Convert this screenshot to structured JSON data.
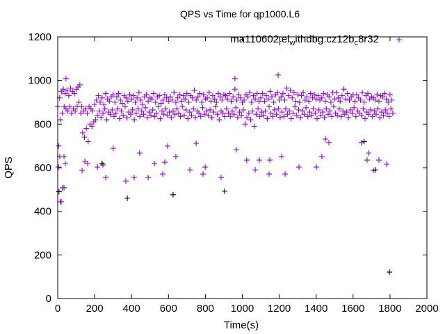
{
  "chart_data": {
    "type": "scatter",
    "title": "QPS vs Time for qp1000.L6",
    "xlabel": "Time(s)",
    "ylabel": "QPS",
    "xlim": [
      0,
      2000
    ],
    "ylim": [
      0,
      1200
    ],
    "xticks": [
      0,
      200,
      400,
      600,
      800,
      1000,
      1200,
      1400,
      1600,
      1800,
      2000
    ],
    "yticks": [
      0,
      200,
      400,
      600,
      800,
      1000,
      1200
    ],
    "grid": false,
    "legend": {
      "placement": "top-right",
      "label_parts": [
        {
          "t": "ma110602",
          "sub": false
        },
        {
          "t": "r",
          "sub": true
        },
        {
          "t": "el",
          "sub": false
        },
        {
          "t": "w",
          "sub": true
        },
        {
          "t": "ithdbg.cz12b",
          "sub": false
        },
        {
          "t": "c",
          "sub": true
        },
        {
          "t": "8r32",
          "sub": false
        }
      ]
    },
    "series": [
      {
        "name": "ma110602_rel_withdbg.cz12b_c8r32",
        "color": "#9400d3",
        "marker": "plus",
        "band": {
          "x_start": 0,
          "x_step": 10,
          "y_upper": [
            880,
            920,
            950,
            960,
            940,
            955,
            930,
            965,
            950,
            940,
            960,
            970,
            980,
            880,
            860,
            870,
            850,
            880,
            870,
            860,
            890,
            910,
            930,
            900,
            920,
            890,
            940,
            915,
            905,
            925,
            935,
            900,
            925,
            940,
            910,
            895,
            930,
            920,
            905,
            935,
            915,
            930,
            900,
            920,
            945,
            910,
            890,
            925,
            935,
            905,
            920,
            915,
            940,
            900,
            925,
            930,
            895,
            910,
            935,
            920,
            905,
            925,
            910,
            945,
            900,
            920,
            935,
            905,
            930,
            915,
            940,
            900,
            930,
            920,
            955,
            910,
            925,
            940,
            900,
            935,
            915,
            920,
            945,
            905,
            930,
            915,
            900,
            940,
            925,
            910,
            935,
            930,
            915,
            940,
            905,
            925,
            960,
            910,
            935,
            920,
            900,
            910,
            935,
            925,
            945,
            900,
            930,
            915,
            940,
            905,
            920,
            940,
            905,
            930,
            915,
            950,
            925,
            900,
            935,
            945,
            910,
            925,
            940,
            910,
            965,
            930,
            955,
            920,
            945,
            905,
            935,
            900,
            930,
            945,
            910,
            925,
            905,
            940,
            920,
            935,
            915,
            930,
            910,
            920,
            940,
            905,
            935,
            925,
            900,
            945,
            915,
            945,
            920,
            905,
            930,
            960,
            915,
            940,
            910,
            925,
            935,
            905,
            935,
            920,
            910,
            945,
            900,
            930,
            940,
            915,
            925,
            920,
            910,
            935,
            905,
            930,
            925,
            940,
            915,
            900,
            935,
            910
          ],
          "y_lower": [
            700,
            820,
            850,
            880,
            870,
            860,
            880,
            850,
            870,
            860,
            880,
            900,
            850,
            760,
            740,
            780,
            720,
            800,
            790,
            810,
            820,
            840,
            860,
            830,
            850,
            870,
            820,
            855,
            845,
            865,
            835,
            850,
            870,
            825,
            860,
            840,
            880,
            830,
            855,
            845,
            865,
            820,
            850,
            870,
            835,
            860,
            845,
            875,
            830,
            855,
            840,
            865,
            835,
            850,
            880,
            825,
            860,
            845,
            870,
            840,
            855,
            830,
            860,
            845,
            870,
            850,
            835,
            880,
            840,
            865,
            825,
            855,
            840,
            870,
            830,
            860,
            850,
            835,
            875,
            845,
            860,
            840,
            865,
            830,
            855,
            880,
            845,
            820,
            860,
            850,
            835,
            870,
            850,
            835,
            860,
            845,
            875,
            830,
            855,
            840,
            865,
            800,
            830,
            850,
            820,
            860,
            790,
            845,
            870,
            835,
            855,
            840,
            860,
            825,
            880,
            850,
            835,
            865,
            845,
            870,
            830,
            855,
            835,
            870,
            845,
            860,
            825,
            850,
            880,
            840,
            865,
            830,
            860,
            845,
            875,
            835,
            855,
            840,
            870,
            850,
            825,
            865,
            840,
            855,
            830,
            870,
            845,
            860,
            835,
            880,
            850,
            840,
            870,
            835,
            860,
            845,
            855,
            830,
            865,
            850,
            875,
            835,
            860,
            850,
            840,
            870,
            825,
            855,
            845,
            865,
            835,
            860,
            845,
            870,
            830,
            855,
            840,
            865,
            850,
            835,
            870,
            850
          ]
        },
        "outliers": [
          [
            15,
            444
          ],
          [
            19,
            444
          ],
          [
            26,
            508
          ],
          [
            34,
            508
          ],
          [
            4,
            603
          ],
          [
            11,
            651
          ],
          [
            34,
            651
          ],
          [
            41,
            619
          ],
          [
            132,
            587
          ],
          [
            147,
            629
          ],
          [
            162,
            619
          ],
          [
            215,
            603
          ],
          [
            245,
            613
          ],
          [
            260,
            555
          ],
          [
            301,
            689
          ],
          [
            369,
            539
          ],
          [
            414,
            555
          ],
          [
            444,
            667
          ],
          [
            490,
            555
          ],
          [
            524,
            619
          ],
          [
            569,
            571
          ],
          [
            580,
            625
          ],
          [
            595,
            699
          ],
          [
            640,
            651
          ],
          [
            716,
            590
          ],
          [
            750,
            712
          ],
          [
            787,
            571
          ],
          [
            799,
            603
          ],
          [
            885,
            555
          ],
          [
            968,
            683
          ],
          [
            1024,
            635
          ],
          [
            1070,
            590
          ],
          [
            1092,
            635
          ],
          [
            1145,
            571
          ],
          [
            1149,
            635
          ],
          [
            1213,
            651
          ],
          [
            1232,
            571
          ],
          [
            1307,
            603
          ],
          [
            1401,
            603
          ],
          [
            1431,
            651
          ],
          [
            1450,
            731
          ],
          [
            1469,
            715
          ],
          [
            1646,
            715
          ],
          [
            1676,
            635
          ],
          [
            1684,
            667
          ],
          [
            1710,
            587
          ],
          [
            1740,
            635
          ],
          [
            1782,
            616
          ],
          [
            45,
            1009
          ],
          [
            960,
            1009
          ],
          [
            1194,
            1025
          ]
        ]
      },
      {
        "name": "",
        "color": "#000000",
        "marker": "plus",
        "outliers": [
          [
            7,
            490
          ],
          [
            377,
            460
          ],
          [
            625,
            476
          ],
          [
            904,
            492
          ],
          [
            1797,
            121
          ],
          [
            240,
            620
          ],
          [
            1720,
            590
          ],
          [
            1660,
            720
          ]
        ]
      }
    ]
  }
}
